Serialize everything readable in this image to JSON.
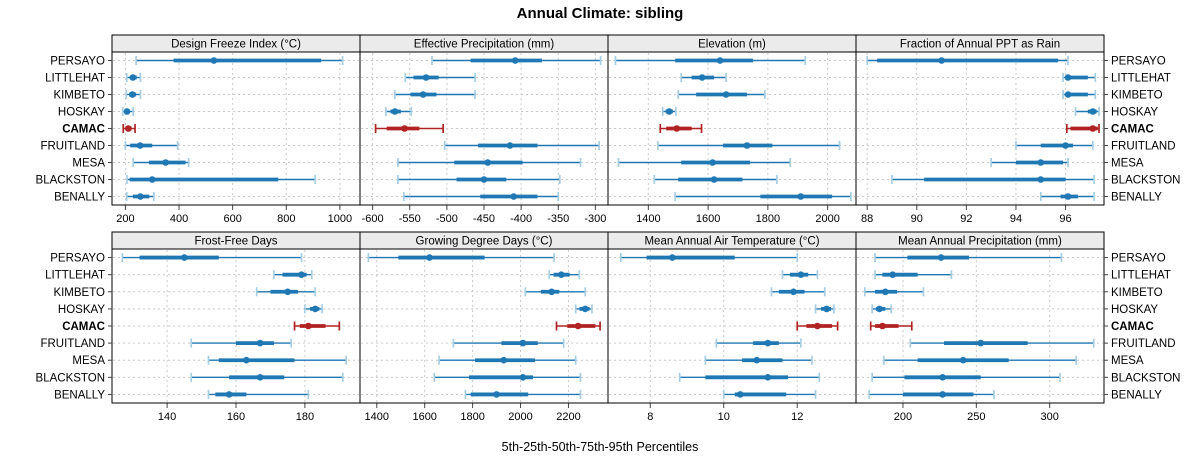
{
  "title": "Annual Climate: sibling",
  "caption": "5th-25th-50th-75th-95th Percentiles",
  "stations": [
    "PERSAYO",
    "LITTLEHAT",
    "KIMBETO",
    "HOSKAY",
    "CAMAC",
    "FRUITLAND",
    "MESA",
    "BLACKSTON",
    "BENALLY"
  ],
  "highlight_station": "CAMAC",
  "colors": {
    "series_blue": "#1f77b4",
    "series_blue_cap": "#a6cee3",
    "highlight_red": "#b22222",
    "strip_bg": "#ebebeb",
    "grid": "#c9c9c9",
    "border": "#000000",
    "tick": "#444444",
    "text": "#000000"
  },
  "chart_data": [
    {
      "type": "dot-range",
      "title": "Design Freeze Index (°C)",
      "row": 0,
      "col": 0,
      "xlim": [
        150,
        1075
      ],
      "ticks": [
        200,
        400,
        600,
        800,
        1000
      ],
      "series": [
        {
          "station": "PERSAYO",
          "p": [
            240,
            380,
            530,
            930,
            1010
          ]
        },
        {
          "station": "LITTLEHAT",
          "p": [
            205,
            216,
            228,
            242,
            256
          ]
        },
        {
          "station": "KIMBETO",
          "p": [
            203,
            214,
            226,
            240,
            256
          ]
        },
        {
          "station": "HOSKAY",
          "p": [
            190,
            197,
            206,
            216,
            229
          ]
        },
        {
          "station": "CAMAC",
          "p": [
            192,
            200,
            211,
            223,
            236
          ]
        },
        {
          "station": "FRUITLAND",
          "p": [
            200,
            218,
            255,
            300,
            395
          ]
        },
        {
          "station": "MESA",
          "p": [
            229,
            288,
            350,
            424,
            436
          ]
        },
        {
          "station": "BLACKSTON",
          "p": [
            206,
            216,
            300,
            770,
            908
          ]
        },
        {
          "station": "BENALLY",
          "p": [
            205,
            228,
            256,
            289,
            306
          ]
        }
      ]
    },
    {
      "type": "dot-range",
      "title": "Effective Precipitation (mm)",
      "row": 0,
      "col": 1,
      "xlim": [
        -617,
        -283
      ],
      "ticks": [
        -600,
        -550,
        -500,
        -450,
        -400,
        -350,
        -300
      ],
      "series": [
        {
          "station": "PERSAYO",
          "p": [
            -520,
            -468,
            -408,
            -372,
            -293
          ]
        },
        {
          "station": "LITTLEHAT",
          "p": [
            -556,
            -545,
            -528,
            -511,
            -462
          ]
        },
        {
          "station": "KIMBETO",
          "p": [
            -570,
            -549,
            -532,
            -514,
            -462
          ]
        },
        {
          "station": "HOSKAY",
          "p": [
            -582,
            -576,
            -570,
            -562,
            -548
          ]
        },
        {
          "station": "CAMAC",
          "p": [
            -596,
            -581,
            -557,
            -537,
            -505
          ]
        },
        {
          "station": "FRUITLAND",
          "p": [
            -503,
            -458,
            -415,
            -378,
            -295
          ]
        },
        {
          "station": "MESA",
          "p": [
            -566,
            -490,
            -445,
            -398,
            -320
          ]
        },
        {
          "station": "BLACKSTON",
          "p": [
            -566,
            -487,
            -450,
            -420,
            -348
          ]
        },
        {
          "station": "BENALLY",
          "p": [
            -558,
            -455,
            -410,
            -378,
            -350
          ]
        }
      ]
    },
    {
      "type": "dot-range",
      "title": "Elevation (m)",
      "row": 0,
      "col": 2,
      "xlim": [
        1265,
        2095
      ],
      "ticks": [
        1400,
        1600,
        1800,
        2000
      ],
      "series": [
        {
          "station": "PERSAYO",
          "p": [
            1290,
            1490,
            1640,
            1750,
            1925
          ]
        },
        {
          "station": "LITTLEHAT",
          "p": [
            1510,
            1545,
            1580,
            1620,
            1660
          ]
        },
        {
          "station": "KIMBETO",
          "p": [
            1500,
            1560,
            1660,
            1730,
            1790
          ]
        },
        {
          "station": "HOSKAY",
          "p": [
            1448,
            1458,
            1470,
            1482,
            1492
          ]
        },
        {
          "station": "CAMAC",
          "p": [
            1440,
            1460,
            1495,
            1545,
            1578
          ]
        },
        {
          "station": "FRUITLAND",
          "p": [
            1432,
            1650,
            1730,
            1815,
            2040
          ]
        },
        {
          "station": "MESA",
          "p": [
            1300,
            1510,
            1615,
            1740,
            1875
          ]
        },
        {
          "station": "BLACKSTON",
          "p": [
            1420,
            1500,
            1620,
            1715,
            1830
          ]
        },
        {
          "station": "BENALLY",
          "p": [
            1490,
            1775,
            1910,
            2015,
            2078
          ]
        }
      ]
    },
    {
      "type": "dot-range",
      "title": "Fraction of Annual PPT as Rain",
      "row": 0,
      "col": 3,
      "xlim": [
        87.55,
        97.55
      ],
      "ticks": [
        88,
        90,
        92,
        94,
        96
      ],
      "series": [
        {
          "station": "PERSAYO",
          "p": [
            88.0,
            88.4,
            91.0,
            95.7,
            96.1
          ]
        },
        {
          "station": "LITTLEHAT",
          "p": [
            95.9,
            96.0,
            96.1,
            96.9,
            97.2
          ]
        },
        {
          "station": "KIMBETO",
          "p": [
            95.9,
            96.0,
            96.1,
            96.9,
            97.2
          ]
        },
        {
          "station": "HOSKAY",
          "p": [
            96.4,
            96.9,
            97.1,
            97.25,
            97.35
          ]
        },
        {
          "station": "CAMAC",
          "p": [
            96.05,
            96.2,
            97.1,
            97.3,
            97.35
          ]
        },
        {
          "station": "FRUITLAND",
          "p": [
            94.0,
            95.0,
            96.0,
            96.3,
            97.1
          ]
        },
        {
          "station": "MESA",
          "p": [
            93.0,
            94.0,
            95.0,
            95.9,
            96.1
          ]
        },
        {
          "station": "BLACKSTON",
          "p": [
            89.0,
            90.3,
            95.0,
            96.0,
            97.15
          ]
        },
        {
          "station": "BENALLY",
          "p": [
            95.0,
            95.8,
            96.1,
            96.5,
            97.15
          ]
        }
      ]
    },
    {
      "type": "dot-range",
      "title": "Frost-Free Days",
      "row": 1,
      "col": 0,
      "xlim": [
        124,
        196
      ],
      "ticks": [
        140,
        160,
        180
      ],
      "series": [
        {
          "station": "PERSAYO",
          "p": [
            127,
            132,
            145,
            155,
            179
          ]
        },
        {
          "station": "LITTLEHAT",
          "p": [
            171,
            173.5,
            179,
            180.5,
            182
          ]
        },
        {
          "station": "KIMBETO",
          "p": [
            166,
            170,
            175,
            178,
            183
          ]
        },
        {
          "station": "HOSKAY",
          "p": [
            180,
            181.5,
            183,
            184.2,
            185
          ]
        },
        {
          "station": "CAMAC",
          "p": [
            177,
            178.5,
            181,
            186,
            190
          ]
        },
        {
          "station": "FRUITLAND",
          "p": [
            147,
            160,
            167,
            171,
            176
          ]
        },
        {
          "station": "MESA",
          "p": [
            152,
            155,
            163,
            177,
            192
          ]
        },
        {
          "station": "BLACKSTON",
          "p": [
            147,
            158,
            167,
            174,
            191
          ]
        },
        {
          "station": "BENALLY",
          "p": [
            152,
            154,
            158,
            163,
            181
          ]
        }
      ]
    },
    {
      "type": "dot-range",
      "title": "Growing Degree Days (°C)",
      "row": 1,
      "col": 1,
      "xlim": [
        1330,
        2365
      ],
      "ticks": [
        1400,
        1600,
        1800,
        2000,
        2200
      ],
      "series": [
        {
          "station": "PERSAYO",
          "p": [
            1365,
            1490,
            1620,
            1850,
            2140
          ]
        },
        {
          "station": "LITTLEHAT",
          "p": [
            2120,
            2138,
            2170,
            2205,
            2245
          ]
        },
        {
          "station": "KIMBETO",
          "p": [
            2020,
            2085,
            2130,
            2162,
            2270
          ]
        },
        {
          "station": "HOSKAY",
          "p": [
            2230,
            2246,
            2270,
            2288,
            2298
          ]
        },
        {
          "station": "CAMAC",
          "p": [
            2150,
            2195,
            2240,
            2312,
            2332
          ]
        },
        {
          "station": "FRUITLAND",
          "p": [
            1720,
            1920,
            2010,
            2072,
            2180
          ]
        },
        {
          "station": "MESA",
          "p": [
            1660,
            1810,
            1930,
            2060,
            2230
          ]
        },
        {
          "station": "BLACKSTON",
          "p": [
            1640,
            1785,
            2010,
            2052,
            2250
          ]
        },
        {
          "station": "BENALLY",
          "p": [
            1770,
            1792,
            1900,
            2032,
            2250
          ]
        }
      ]
    },
    {
      "type": "dot-range",
      "title": "Mean Annual Air Temperature (°C)",
      "row": 1,
      "col": 2,
      "xlim": [
        6.85,
        13.6
      ],
      "ticks": [
        8,
        10,
        12
      ],
      "series": [
        {
          "station": "PERSAYO",
          "p": [
            7.2,
            7.9,
            8.6,
            10.3,
            12.0
          ]
        },
        {
          "station": "LITTLEHAT",
          "p": [
            11.6,
            11.8,
            12.1,
            12.3,
            12.55
          ]
        },
        {
          "station": "KIMBETO",
          "p": [
            11.3,
            11.5,
            11.9,
            12.2,
            12.75
          ]
        },
        {
          "station": "HOSKAY",
          "p": [
            12.5,
            12.65,
            12.8,
            12.92,
            13.0
          ]
        },
        {
          "station": "CAMAC",
          "p": [
            12.0,
            12.25,
            12.55,
            12.95,
            13.1
          ]
        },
        {
          "station": "FRUITLAND",
          "p": [
            9.8,
            10.8,
            11.2,
            11.5,
            12.1
          ]
        },
        {
          "station": "MESA",
          "p": [
            9.5,
            10.5,
            10.9,
            11.6,
            12.4
          ]
        },
        {
          "station": "BLACKSTON",
          "p": [
            8.8,
            9.5,
            11.2,
            11.75,
            12.6
          ]
        },
        {
          "station": "BENALLY",
          "p": [
            10.0,
            10.3,
            10.45,
            11.7,
            12.5
          ]
        }
      ]
    },
    {
      "type": "dot-range",
      "title": "Mean Annual Precipitation (mm)",
      "row": 1,
      "col": 3,
      "xlim": [
        168,
        337
      ],
      "ticks": [
        200,
        250,
        300
      ],
      "series": [
        {
          "station": "PERSAYO",
          "p": [
            181,
            203,
            226,
            245,
            308
          ]
        },
        {
          "station": "LITTLEHAT",
          "p": [
            181,
            186,
            193,
            210,
            233
          ]
        },
        {
          "station": "KIMBETO",
          "p": [
            174,
            181,
            188,
            196,
            214
          ]
        },
        {
          "station": "HOSKAY",
          "p": [
            179,
            181.5,
            184,
            188,
            192
          ]
        },
        {
          "station": "CAMAC",
          "p": [
            178,
            181,
            186,
            197,
            206
          ]
        },
        {
          "station": "FRUITLAND",
          "p": [
            205,
            228,
            253,
            285,
            330
          ]
        },
        {
          "station": "MESA",
          "p": [
            187,
            210,
            241,
            272,
            318
          ]
        },
        {
          "station": "BLACKSTON",
          "p": [
            179,
            201,
            227,
            253,
            307
          ]
        },
        {
          "station": "BENALLY",
          "p": [
            177,
            200,
            227,
            248,
            262
          ]
        }
      ]
    }
  ]
}
